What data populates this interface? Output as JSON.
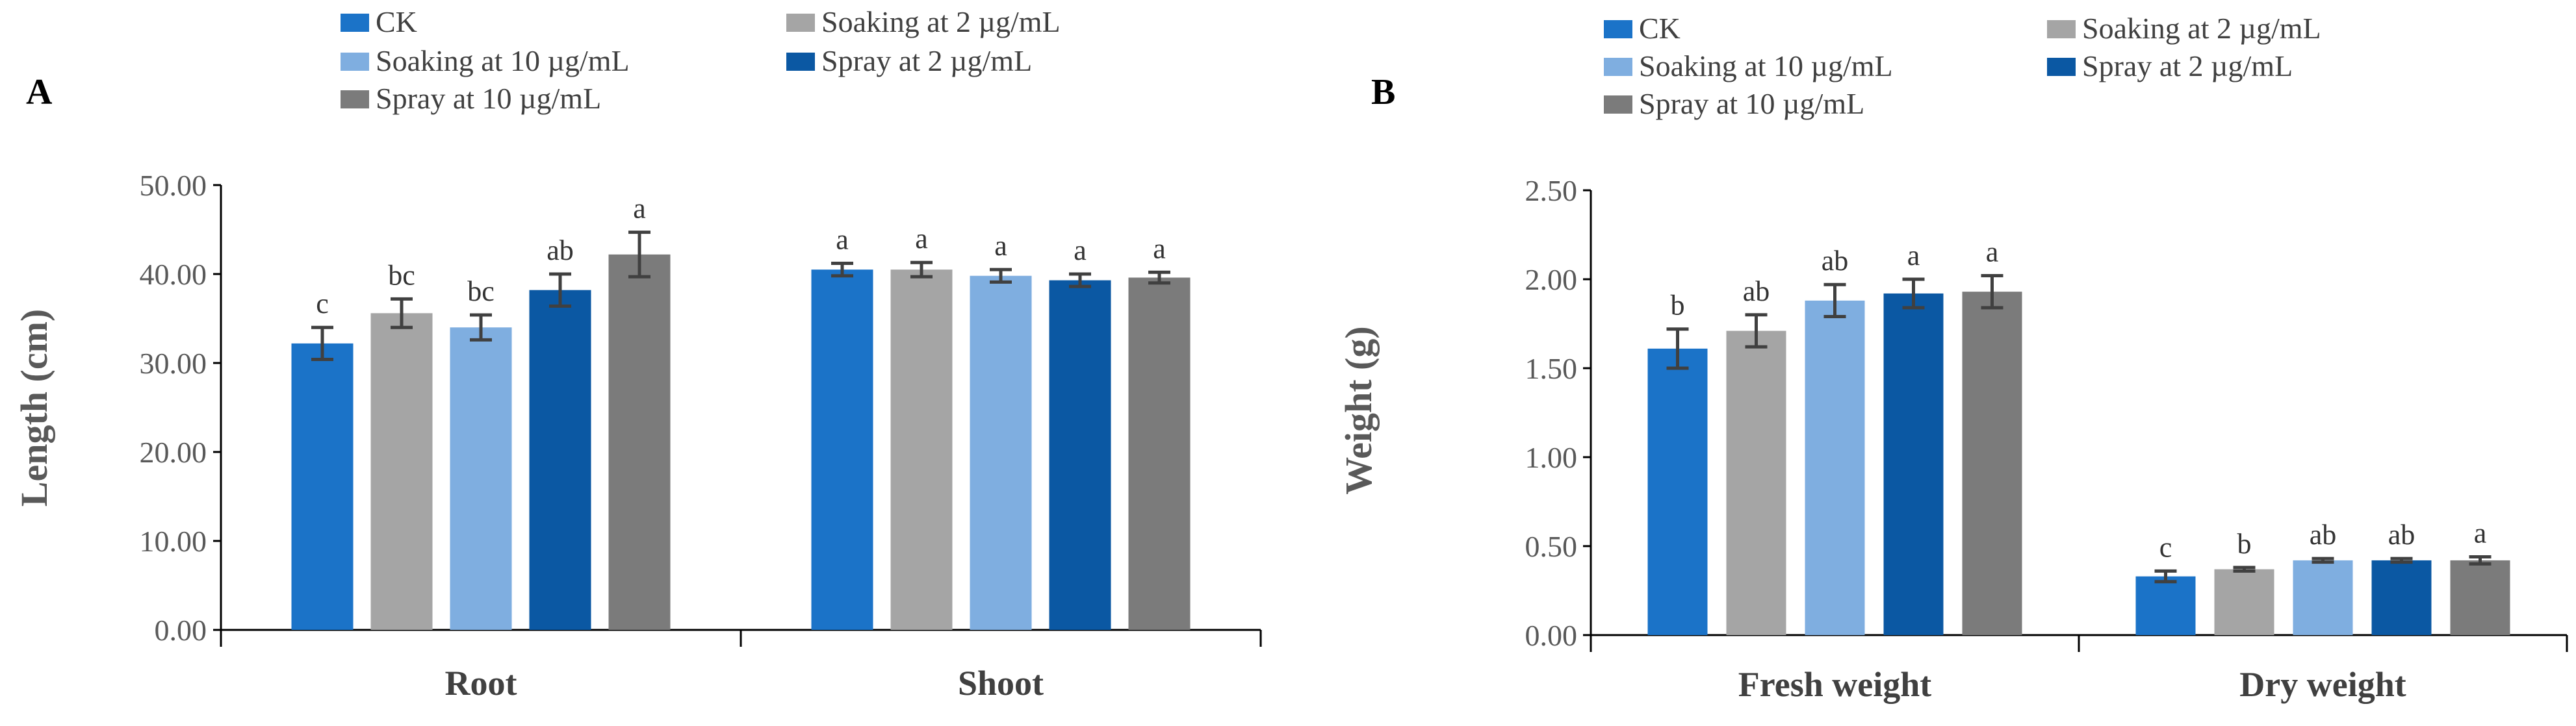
{
  "colors": {
    "CK": "#1B73C8",
    "Soaking at 2 µg/mL": "#A5A5A5",
    "Soaking at 10 µg/mL": "#7FAEE0",
    "Spray at 2 µg/mL": "#0B58A3",
    "Spray at 10 µg/mL": "#7B7B7B"
  },
  "chart_data": [
    {
      "type": "bar",
      "panel": "A",
      "title": "",
      "xlabel": "",
      "ylabel": "Length (cm)",
      "ylim": [
        0,
        50
      ],
      "yticks": [
        "0.00",
        "10.00",
        "20.00",
        "30.00",
        "40.00",
        "50.00"
      ],
      "categories": [
        "Root",
        "Shoot"
      ],
      "legend_placement": "top",
      "grid": false,
      "series": [
        {
          "name": "CK",
          "values": [
            32.2,
            40.5
          ],
          "errors": [
            1.8,
            0.7
          ],
          "labels": [
            "c",
            "a"
          ]
        },
        {
          "name": "Soaking at 2 µg/mL",
          "values": [
            35.6,
            40.5
          ],
          "errors": [
            1.6,
            0.8
          ],
          "labels": [
            "bc",
            "a"
          ]
        },
        {
          "name": "Soaking at 10 µg/mL",
          "values": [
            34.0,
            39.8
          ],
          "errors": [
            1.4,
            0.7
          ],
          "labels": [
            "bc",
            "a"
          ]
        },
        {
          "name": "Spray at 2 µg/mL",
          "values": [
            38.2,
            39.3
          ],
          "errors": [
            1.8,
            0.7
          ],
          "labels": [
            "ab",
            "a"
          ]
        },
        {
          "name": "Spray at 10 µg/mL",
          "values": [
            42.2,
            39.6
          ],
          "errors": [
            2.5,
            0.6
          ],
          "labels": [
            "a",
            "a"
          ]
        }
      ]
    },
    {
      "type": "bar",
      "panel": "B",
      "title": "",
      "xlabel": "",
      "ylabel": "Weight (g)",
      "ylim": [
        0,
        2.5
      ],
      "yticks": [
        "0.00",
        "0.50",
        "1.00",
        "1.50",
        "2.00",
        "2.50"
      ],
      "categories": [
        "Fresh weight",
        "Dry weight"
      ],
      "legend_placement": "top",
      "grid": false,
      "series": [
        {
          "name": "CK",
          "values": [
            1.61,
            0.33
          ],
          "errors": [
            0.11,
            0.03
          ],
          "labels": [
            "b",
            "c"
          ]
        },
        {
          "name": "Soaking at 2 µg/mL",
          "values": [
            1.71,
            0.37
          ],
          "errors": [
            0.09,
            0.01
          ],
          "labels": [
            "ab",
            "b"
          ]
        },
        {
          "name": "Soaking at 10 µg/mL",
          "values": [
            1.88,
            0.42
          ],
          "errors": [
            0.09,
            0.01
          ],
          "labels": [
            "ab",
            "ab"
          ]
        },
        {
          "name": "Spray at 2 µg/mL",
          "values": [
            1.92,
            0.42
          ],
          "errors": [
            0.08,
            0.01
          ],
          "labels": [
            "a",
            "ab"
          ]
        },
        {
          "name": "Spray at 10 µg/mL",
          "values": [
            1.93,
            0.42
          ],
          "errors": [
            0.09,
            0.02
          ],
          "labels": [
            "a",
            "a"
          ]
        }
      ]
    }
  ]
}
